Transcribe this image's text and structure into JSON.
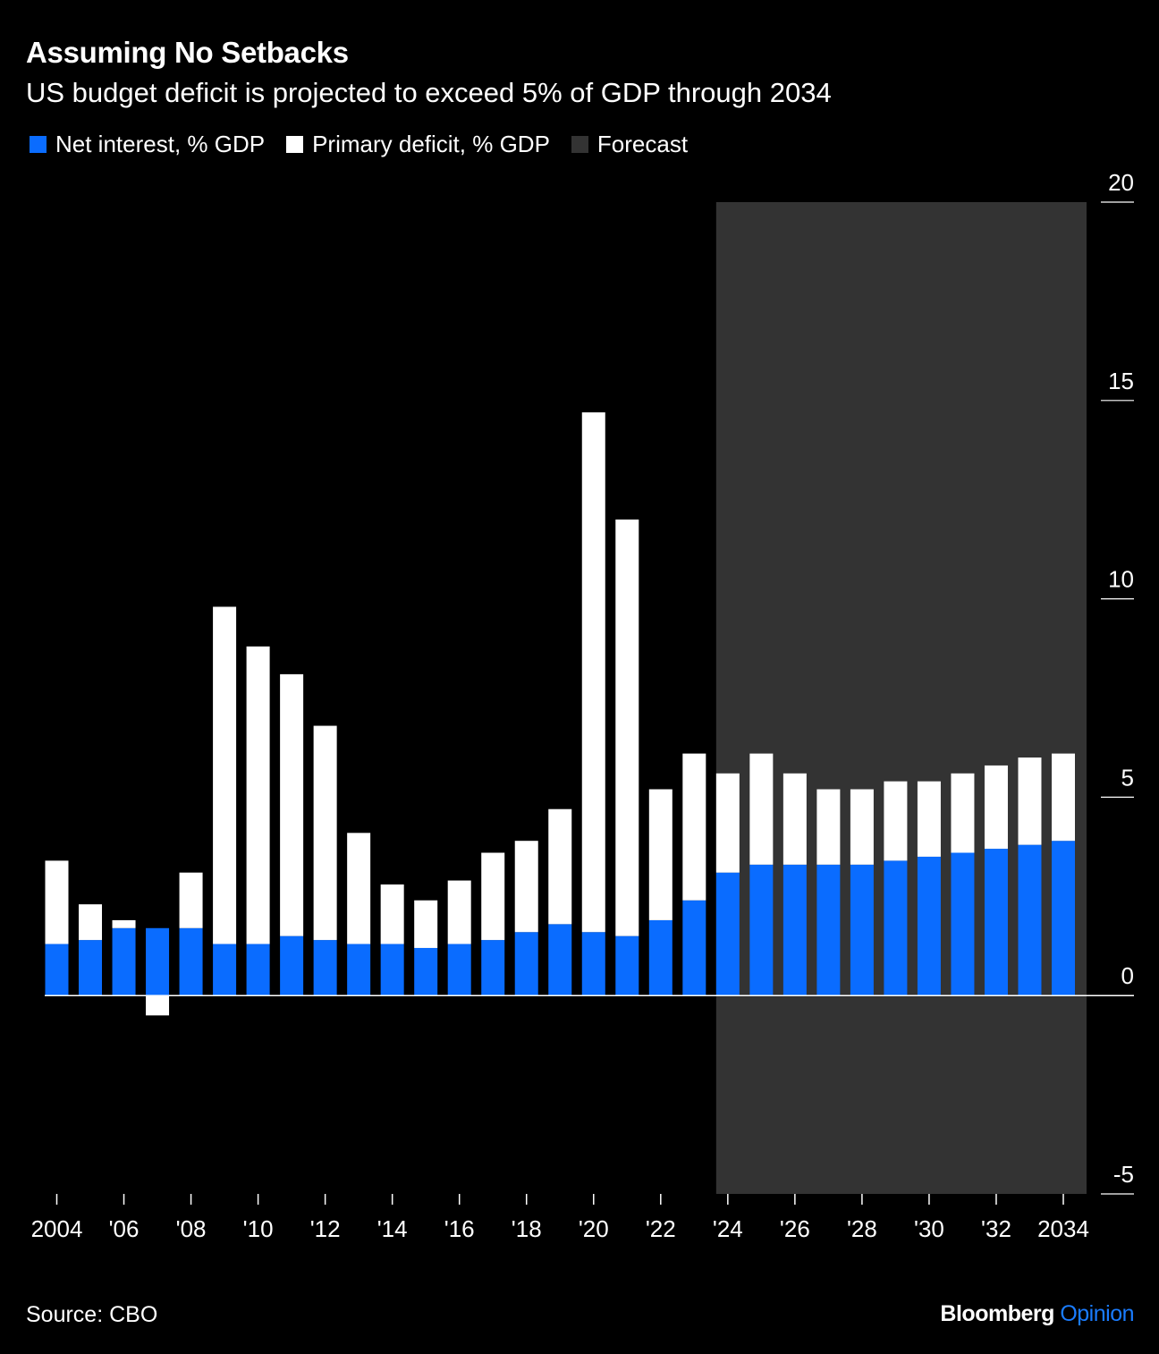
{
  "title": "Assuming No Setbacks",
  "subtitle": "US budget deficit is projected to exceed 5% of GDP through 2034",
  "legend": [
    {
      "label": "Net interest, % GDP",
      "color": "#0a6cff"
    },
    {
      "label": "Primary deficit, % GDP",
      "color": "#ffffff"
    },
    {
      "label": "Forecast",
      "color": "#333333"
    }
  ],
  "source": "Source: CBO",
  "brand": {
    "name": "Bloomberg",
    "suffix": "Opinion"
  },
  "chart_data": {
    "type": "bar",
    "stacked": true,
    "categories": [
      "2004",
      "2005",
      "2006",
      "2007",
      "2008",
      "2009",
      "2010",
      "2011",
      "2012",
      "2013",
      "2014",
      "2015",
      "2016",
      "2017",
      "2018",
      "2019",
      "2020",
      "2021",
      "2022",
      "2023",
      "2024",
      "2025",
      "2026",
      "2027",
      "2028",
      "2029",
      "2030",
      "2031",
      "2032",
      "2033",
      "2034"
    ],
    "x_tick_labels": [
      "2004",
      "'06",
      "'08",
      "'10",
      "'12",
      "'14",
      "'16",
      "'18",
      "'20",
      "'22",
      "'24",
      "'26",
      "'28",
      "'30",
      "'32",
      "2034"
    ],
    "x_tick_label_years": [
      "2004",
      "2006",
      "2008",
      "2010",
      "2012",
      "2014",
      "2016",
      "2018",
      "2020",
      "2022",
      "2024",
      "2026",
      "2028",
      "2030",
      "2032",
      "2034"
    ],
    "series": [
      {
        "name": "Net interest, % GDP",
        "color": "#0a6cff",
        "values": [
          1.3,
          1.4,
          1.7,
          1.7,
          1.7,
          1.3,
          1.3,
          1.5,
          1.4,
          1.3,
          1.3,
          1.2,
          1.3,
          1.4,
          1.6,
          1.8,
          1.6,
          1.5,
          1.9,
          2.4,
          3.1,
          3.3,
          3.3,
          3.3,
          3.3,
          3.4,
          3.5,
          3.6,
          3.7,
          3.8,
          3.9
        ]
      },
      {
        "name": "Primary deficit, % GDP",
        "color": "#ffffff",
        "values": [
          2.1,
          0.9,
          0.2,
          -0.5,
          1.4,
          8.5,
          7.5,
          6.6,
          5.4,
          2.8,
          1.5,
          1.2,
          1.6,
          2.2,
          2.3,
          2.9,
          13.1,
          10.5,
          3.3,
          3.7,
          2.5,
          2.8,
          2.3,
          1.9,
          1.9,
          2.0,
          1.9,
          2.0,
          2.1,
          2.2,
          2.2
        ]
      }
    ],
    "forecast_start": "2024",
    "forecast_end": "2034",
    "y_ticks": [
      -5,
      0,
      5,
      10,
      15,
      20
    ],
    "ylim": [
      -5,
      20
    ],
    "xlabel": "",
    "ylabel": ""
  }
}
